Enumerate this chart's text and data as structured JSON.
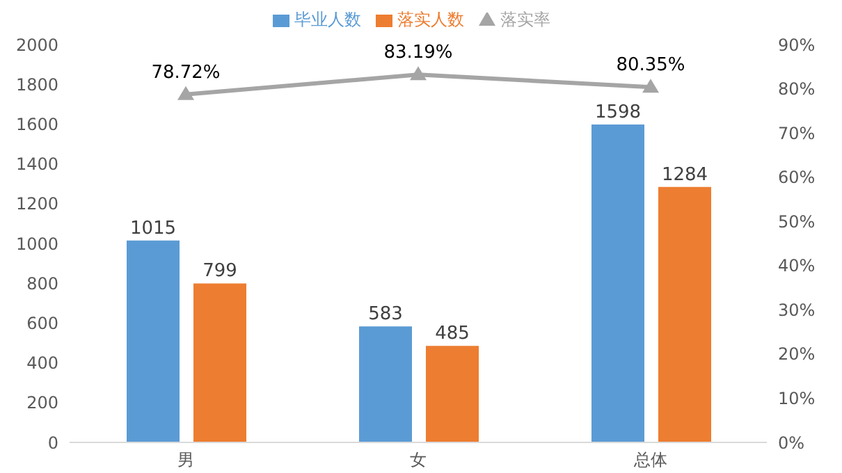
{
  "chart_data": {
    "type": "bar",
    "categories": [
      "男",
      "女",
      "总体"
    ],
    "series": [
      {
        "name": "毕业人数",
        "color": "#5b9bd5",
        "values": [
          1015,
          583,
          1598
        ]
      },
      {
        "name": "落实人数",
        "color": "#ed7d31",
        "values": [
          799,
          485,
          1284
        ]
      },
      {
        "name": "落实率",
        "type": "line",
        "axis": "y2",
        "color": "#a5a5a5",
        "values": [
          78.72,
          83.19,
          80.35
        ],
        "value_labels": [
          "78.72%",
          "83.19%",
          "80.35%"
        ]
      }
    ],
    "ylim": [
      0,
      2000
    ],
    "yticks": [
      0,
      200,
      400,
      600,
      800,
      1000,
      1200,
      1400,
      1600,
      1800,
      2000
    ],
    "y2lim": [
      0,
      90
    ],
    "y2ticks": [
      {
        "value": 0,
        "label": "0%"
      },
      {
        "value": 10,
        "label": "10%"
      },
      {
        "value": 20,
        "label": "20%"
      },
      {
        "value": 30,
        "label": "30%"
      },
      {
        "value": 40,
        "label": "40%"
      },
      {
        "value": 50,
        "label": "50%"
      },
      {
        "value": 60,
        "label": "60%"
      },
      {
        "value": 70,
        "label": "70%"
      },
      {
        "value": 80,
        "label": "80%"
      },
      {
        "value": 90,
        "label": "90%"
      }
    ],
    "data_labels": true,
    "legend": "top",
    "marker": "triangle",
    "grid": false
  }
}
